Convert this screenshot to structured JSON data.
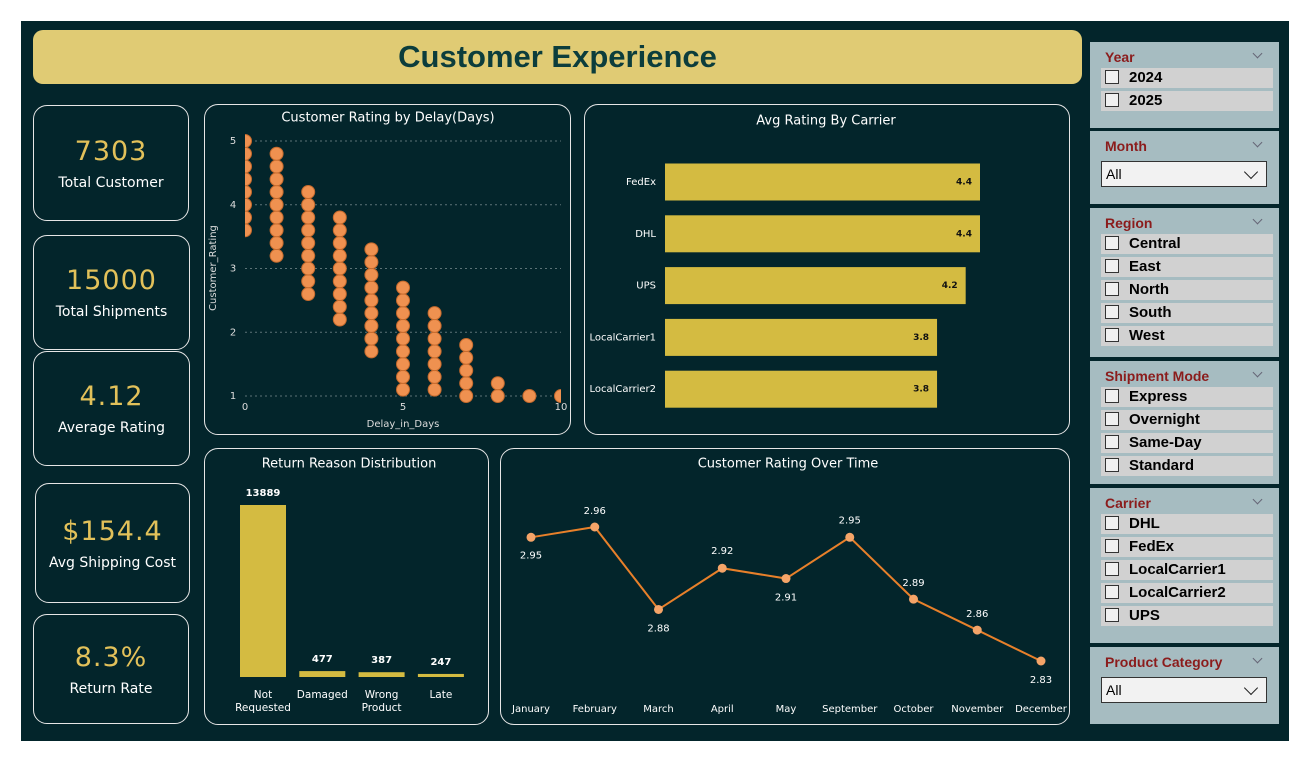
{
  "header": {
    "title": "Customer Experience"
  },
  "kpis": [
    {
      "value": "7303",
      "label": "Total Customer"
    },
    {
      "value": "15000",
      "label": "Total Shipments"
    },
    {
      "value": "4.12",
      "label": "Average Rating"
    },
    {
      "value": "$154.4",
      "label": "Avg Shipping Cost"
    },
    {
      "value": "8.3%",
      "label": "Return Rate"
    }
  ],
  "chart_data": [
    {
      "type": "scatter",
      "title": "Customer Rating by Delay(Days)",
      "x_label": "Delay_in_Days",
      "y_label": "Customer_Rating",
      "x": [
        0,
        0,
        0,
        0,
        0,
        0,
        0,
        0,
        1,
        1,
        1,
        1,
        1,
        1,
        1,
        1,
        1,
        2,
        2,
        2,
        2,
        2,
        2,
        2,
        2,
        2,
        3,
        3,
        3,
        3,
        3,
        3,
        3,
        3,
        3,
        4,
        4,
        4,
        4,
        4,
        4,
        4,
        4,
        4,
        5,
        5,
        5,
        5,
        5,
        5,
        5,
        5,
        5,
        6,
        6,
        6,
        6,
        6,
        6,
        6,
        7,
        7,
        7,
        7,
        7,
        8,
        8,
        9,
        10
      ],
      "y": [
        3.6,
        3.8,
        4,
        4.2,
        4.4,
        4.6,
        4.8,
        5,
        3.2,
        3.4,
        3.6,
        3.8,
        4,
        4.2,
        4.4,
        4.6,
        4.8,
        2.6,
        2.8,
        3,
        3.2,
        3.4,
        3.6,
        3.8,
        4,
        4.2,
        2.2,
        2.4,
        2.6,
        2.8,
        3,
        3.2,
        3.4,
        3.6,
        3.8,
        1.7,
        1.9,
        2.1,
        2.3,
        2.5,
        2.7,
        2.9,
        3.1,
        3.3,
        1.1,
        1.3,
        1.5,
        1.7,
        1.9,
        2.1,
        2.3,
        2.5,
        2.7,
        1.1,
        1.3,
        1.5,
        1.7,
        1.9,
        2.1,
        2.3,
        1,
        1.2,
        1.4,
        1.6,
        1.8,
        1,
        1.2,
        1,
        1
      ],
      "xlim": [
        0,
        10
      ],
      "ylim": [
        1,
        5
      ],
      "xticks": [
        0,
        5,
        10
      ],
      "yticks": [
        1,
        2,
        3,
        4,
        5
      ],
      "grid": true,
      "color": "#ef9150"
    },
    {
      "type": "barh",
      "title": "Avg Rating By Carrier",
      "categories": [
        "FedEx",
        "DHL",
        "UPS",
        "LocalCarrier1",
        "LocalCarrier2"
      ],
      "values": [
        4.4,
        4.4,
        4.2,
        3.8,
        3.8
      ],
      "color": "#d4bb41"
    },
    {
      "type": "bar",
      "title": "Return Reason Distribution",
      "categories": [
        "Not Requested",
        "Damaged",
        "Wrong Product",
        "Late"
      ],
      "values": [
        13889,
        477,
        387,
        247
      ],
      "color": "#d4bb41"
    },
    {
      "type": "line",
      "title": "Customer Rating Over Time",
      "categories": [
        "January",
        "February",
        "March",
        "April",
        "May",
        "September",
        "October",
        "November",
        "December"
      ],
      "values": [
        2.95,
        2.96,
        2.88,
        2.92,
        2.91,
        2.95,
        2.89,
        2.86,
        2.83
      ],
      "color": "#e8802a",
      "marker_color": "#f5a468"
    }
  ],
  "slicers": [
    {
      "title": "Year",
      "items": [
        "2024",
        "2025"
      ]
    },
    {
      "title": "Month",
      "selected": "All"
    },
    {
      "title": "Region",
      "items": [
        "Central",
        "East",
        "North",
        "South",
        "West"
      ]
    },
    {
      "title": "Shipment Mode",
      "items": [
        "Express",
        "Overnight",
        "Same-Day",
        "Standard"
      ]
    },
    {
      "title": "Carrier",
      "items": [
        "DHL",
        "FedEx",
        "LocalCarrier1",
        "LocalCarrier2",
        "UPS"
      ]
    },
    {
      "title": "Product Category",
      "selected": "All"
    }
  ]
}
